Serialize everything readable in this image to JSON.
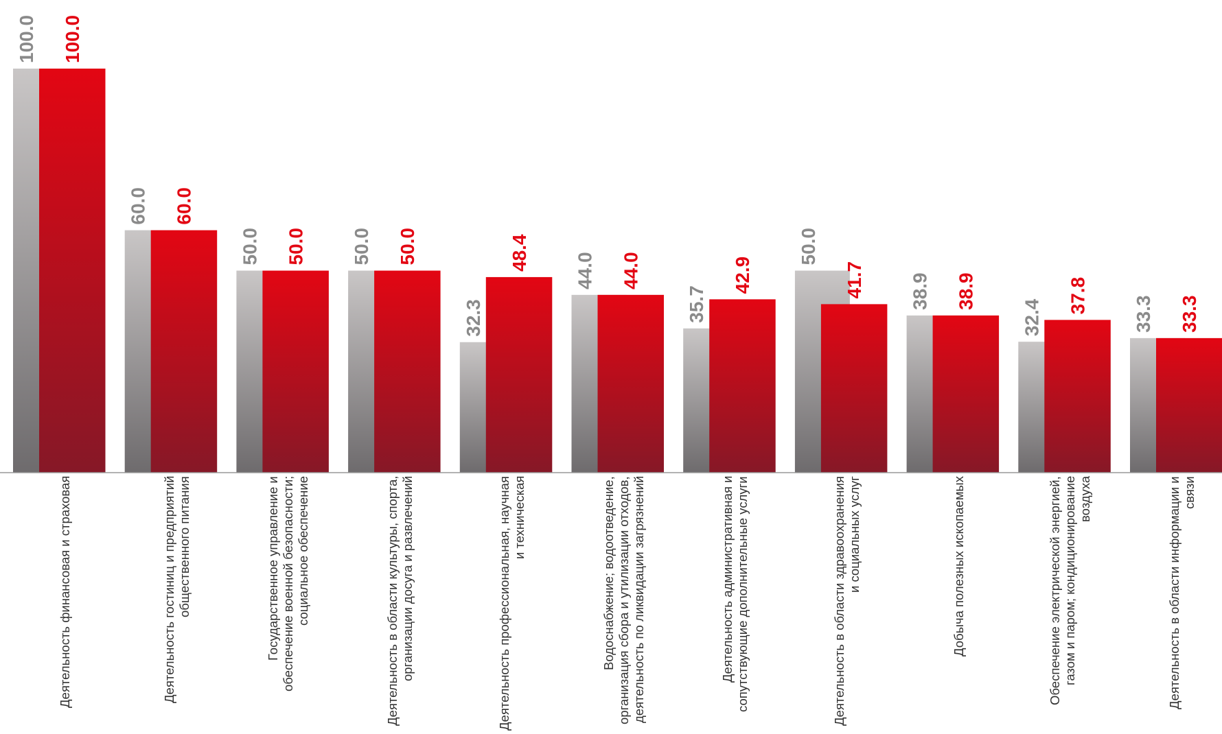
{
  "chart_data": {
    "type": "bar",
    "categories": [
      "Деятельность финансовая и страховая",
      "Деятельность гостиниц и предприятий общественного питания",
      "Государственное управление и обеспечение военной безопасности; социальное обеспечение",
      "Деятельность в области культуры, спорта, организации досуга и развлечений",
      "Деятельность профессиональная, научная и техническая",
      "Водоснабжение; водоотведение, организация сбора и утилизации отходов, деятельность по ликвидации загрязнений",
      "Деятельность административная и сопутствующие дополнительные услуги",
      "Деятельность в области здравоохранения и социальных услуг",
      "Добыча полезных ископаемых",
      "Обеспечение электрической энергией, газом и паром; кондиционирование воздуха",
      "Деятельность в области информации и связи"
    ],
    "series": [
      {
        "color": "#c9c6c6",
        "values": [
          100,
          60,
          50,
          50,
          32.3,
          44,
          35.7,
          50,
          38.9,
          32.4,
          33.3
        ],
        "value_labels": [
          "100.0",
          "60.0",
          "50.0",
          "50.0",
          "32.3",
          "44.0",
          "35.7",
          "50.0",
          "38.9",
          "32.4",
          "33.3"
        ]
      },
      {
        "color": "#e30613",
        "values": [
          100,
          60,
          50,
          50,
          48.4,
          44,
          42.9,
          41.7,
          38.9,
          37.8,
          33.3
        ],
        "value_labels": [
          "100.0",
          "60.0",
          "50.0",
          "50.0",
          "48.4",
          "44.0",
          "42.9",
          "41.7",
          "38.9",
          "37.8",
          "33.3"
        ]
      }
    ],
    "ylim": [
      0,
      100
    ]
  }
}
